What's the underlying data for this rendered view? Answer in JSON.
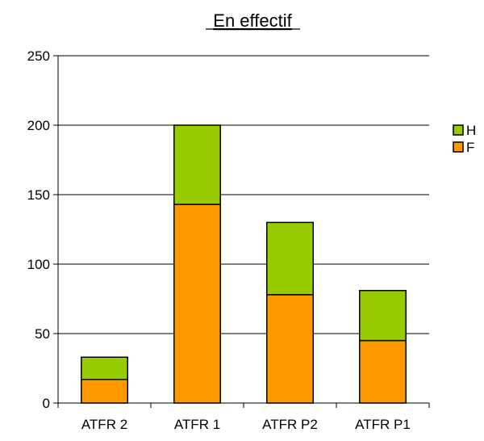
{
  "chart_data": {
    "type": "bar",
    "stacked": true,
    "title": "En effectif",
    "title_underlined": true,
    "xlabel": "",
    "ylabel": "",
    "categories": [
      "ATFR 2",
      "ATFR 1",
      "ATFR P2",
      "ATFR P1"
    ],
    "series": [
      {
        "name": "F",
        "color": "#FF9900",
        "values": [
          17,
          143,
          78,
          45
        ]
      },
      {
        "name": "H",
        "color": "#99CC00",
        "values": [
          16,
          57,
          52,
          36
        ]
      }
    ],
    "ylim": [
      0,
      250
    ],
    "yticks": [
      0,
      50,
      100,
      150,
      200,
      250
    ],
    "grid": true,
    "legend_position": "right",
    "legend_order": [
      "H",
      "F"
    ]
  }
}
